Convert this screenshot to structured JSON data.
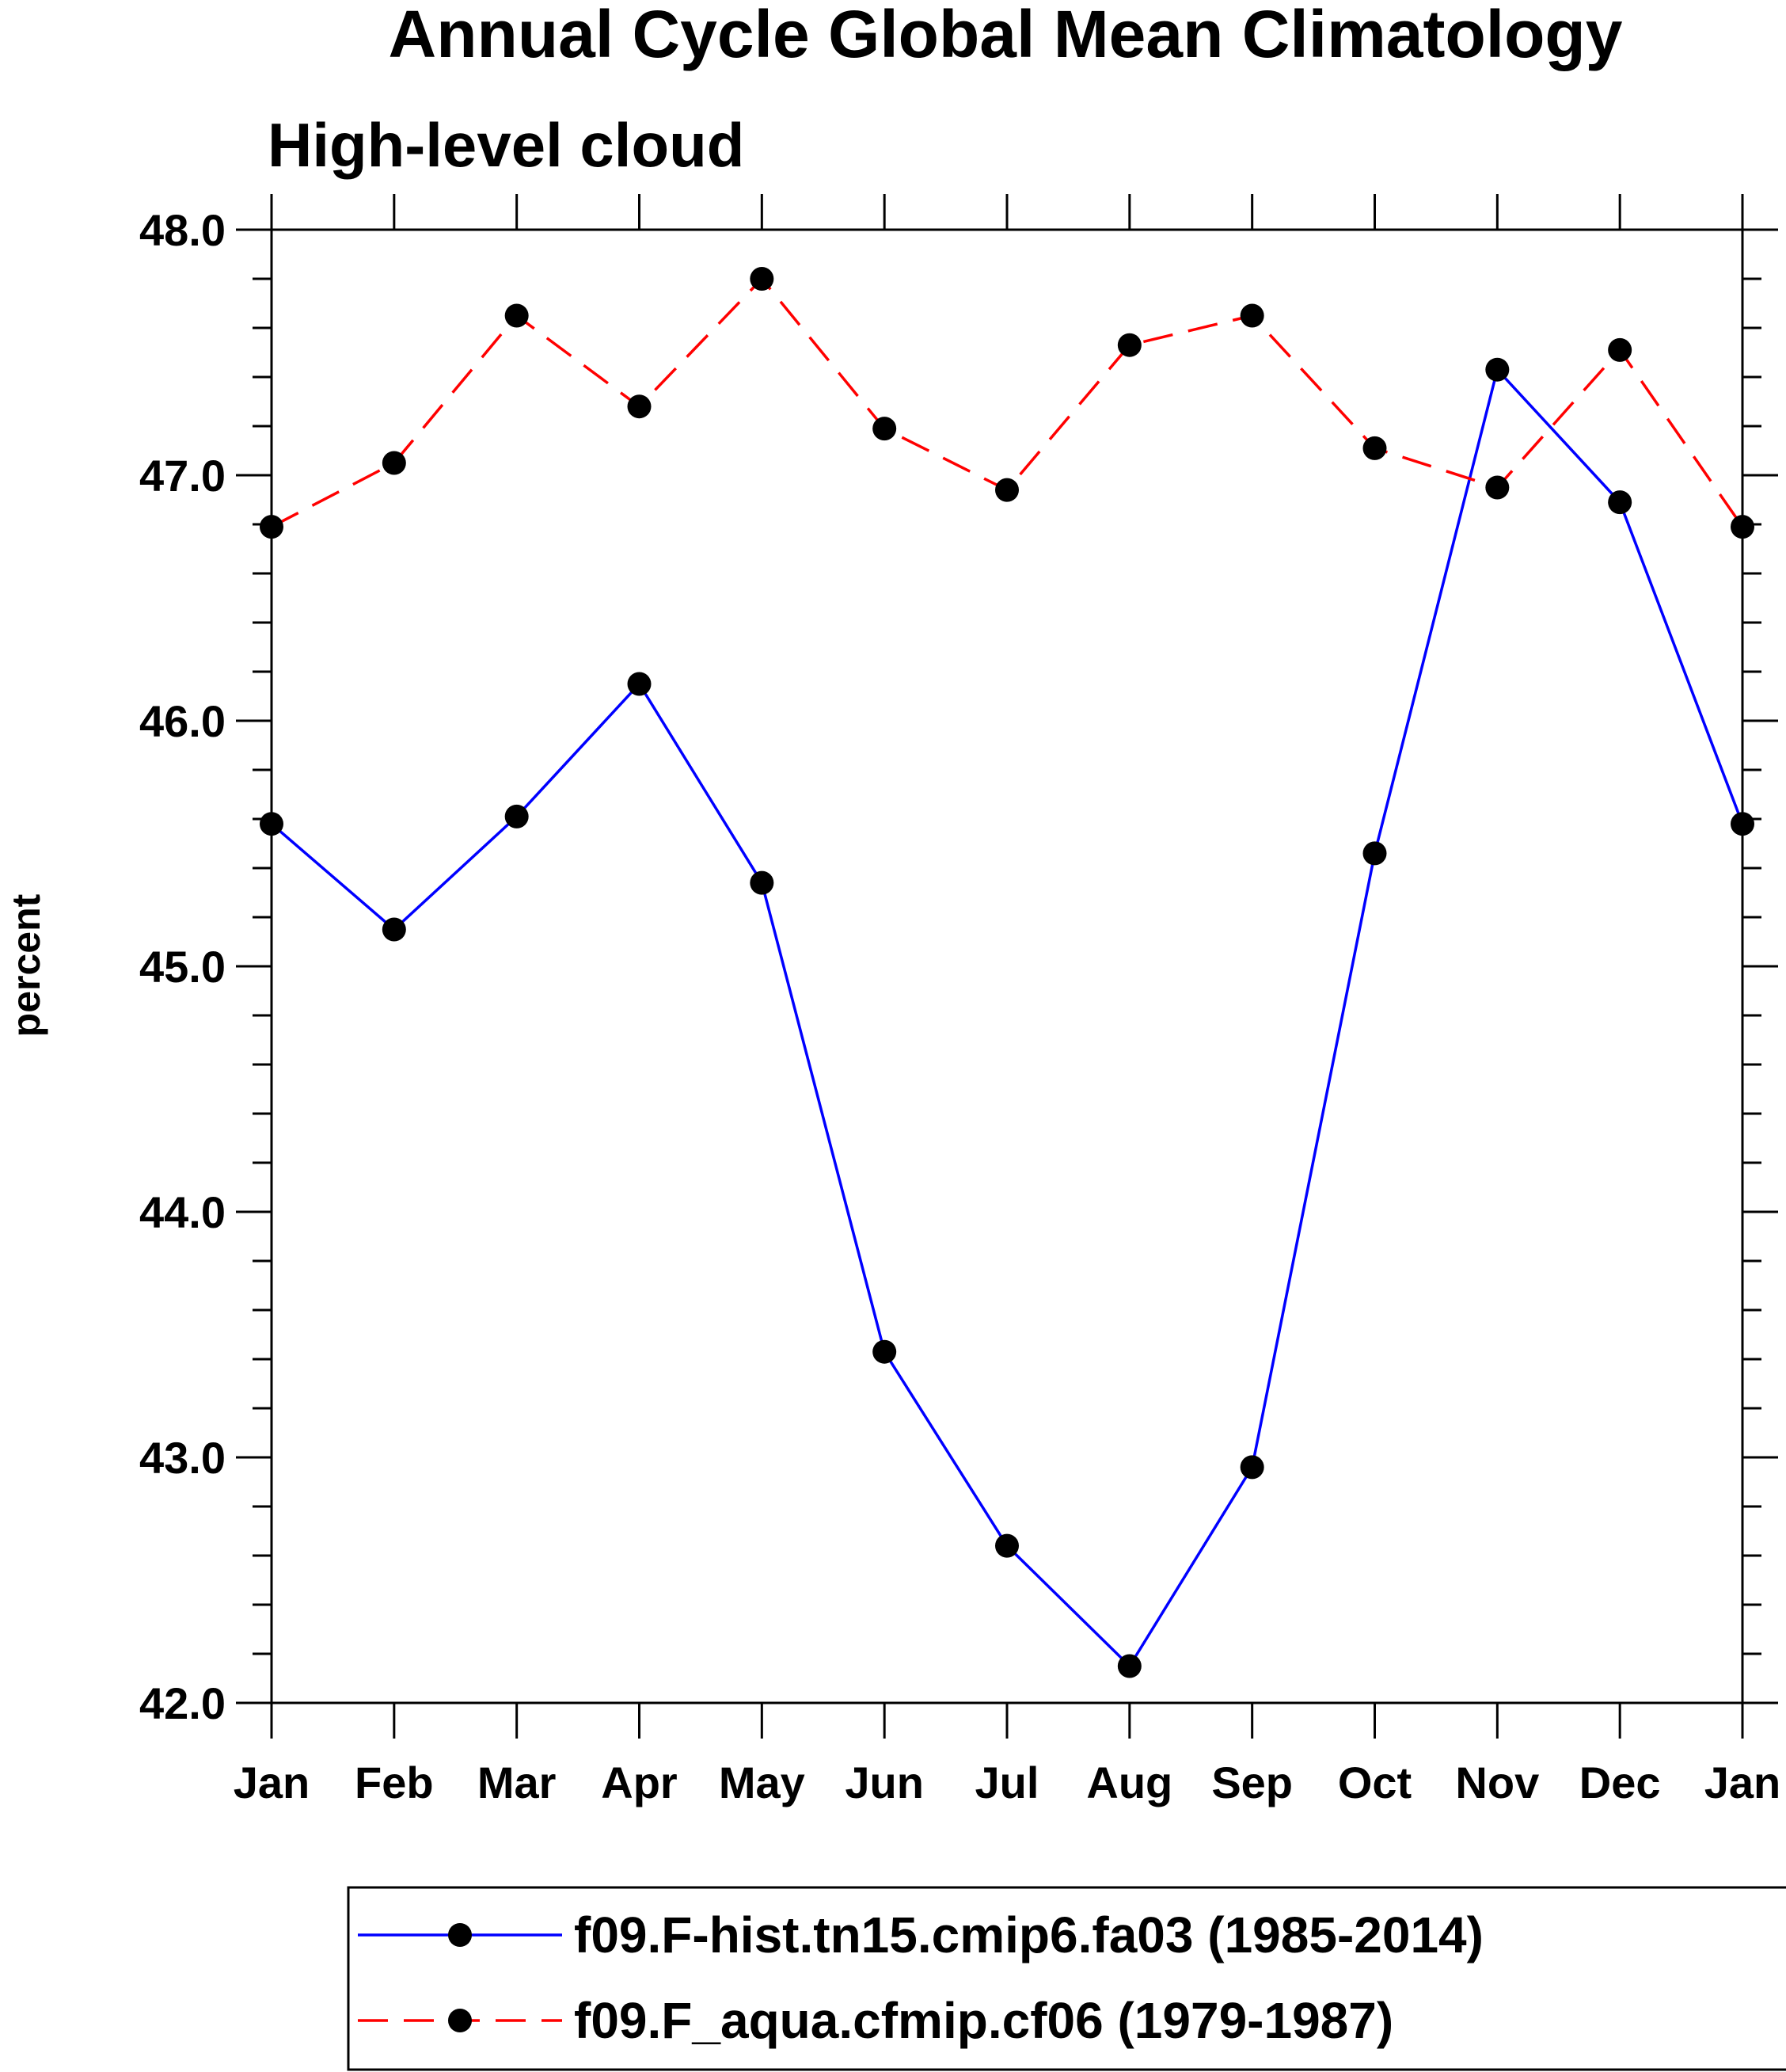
{
  "chart_data": {
    "type": "line",
    "title": "Annual Cycle Global Mean Climatology",
    "subtitle": "High-level cloud",
    "xlabel": "",
    "ylabel": "percent",
    "categories": [
      "Jan",
      "Feb",
      "Mar",
      "Apr",
      "May",
      "Jun",
      "Jul",
      "Aug",
      "Sep",
      "Oct",
      "Nov",
      "Dec",
      "Jan"
    ],
    "ylim": [
      42.0,
      48.0
    ],
    "yticks": [
      "42.0",
      "43.0",
      "44.0",
      "45.0",
      "46.0",
      "47.0",
      "48.0"
    ],
    "grid": false,
    "legend_position": "bottom",
    "series": [
      {
        "name": "f09.F-hist.tn15.cmip6.fa03 (1985-2014)",
        "color": "#0000ff",
        "style": "solid",
        "values": [
          45.58,
          45.15,
          45.61,
          46.15,
          45.34,
          43.43,
          42.64,
          42.15,
          42.96,
          45.46,
          47.43,
          46.89,
          45.58
        ]
      },
      {
        "name": "f09.F_aqua.cfmip.cf06 (1979-1987)",
        "color": "#ff0000",
        "style": "dashed",
        "values": [
          46.79,
          47.05,
          47.65,
          47.28,
          47.8,
          47.19,
          46.94,
          47.53,
          47.65,
          47.11,
          46.95,
          47.51,
          46.79
        ]
      }
    ]
  }
}
